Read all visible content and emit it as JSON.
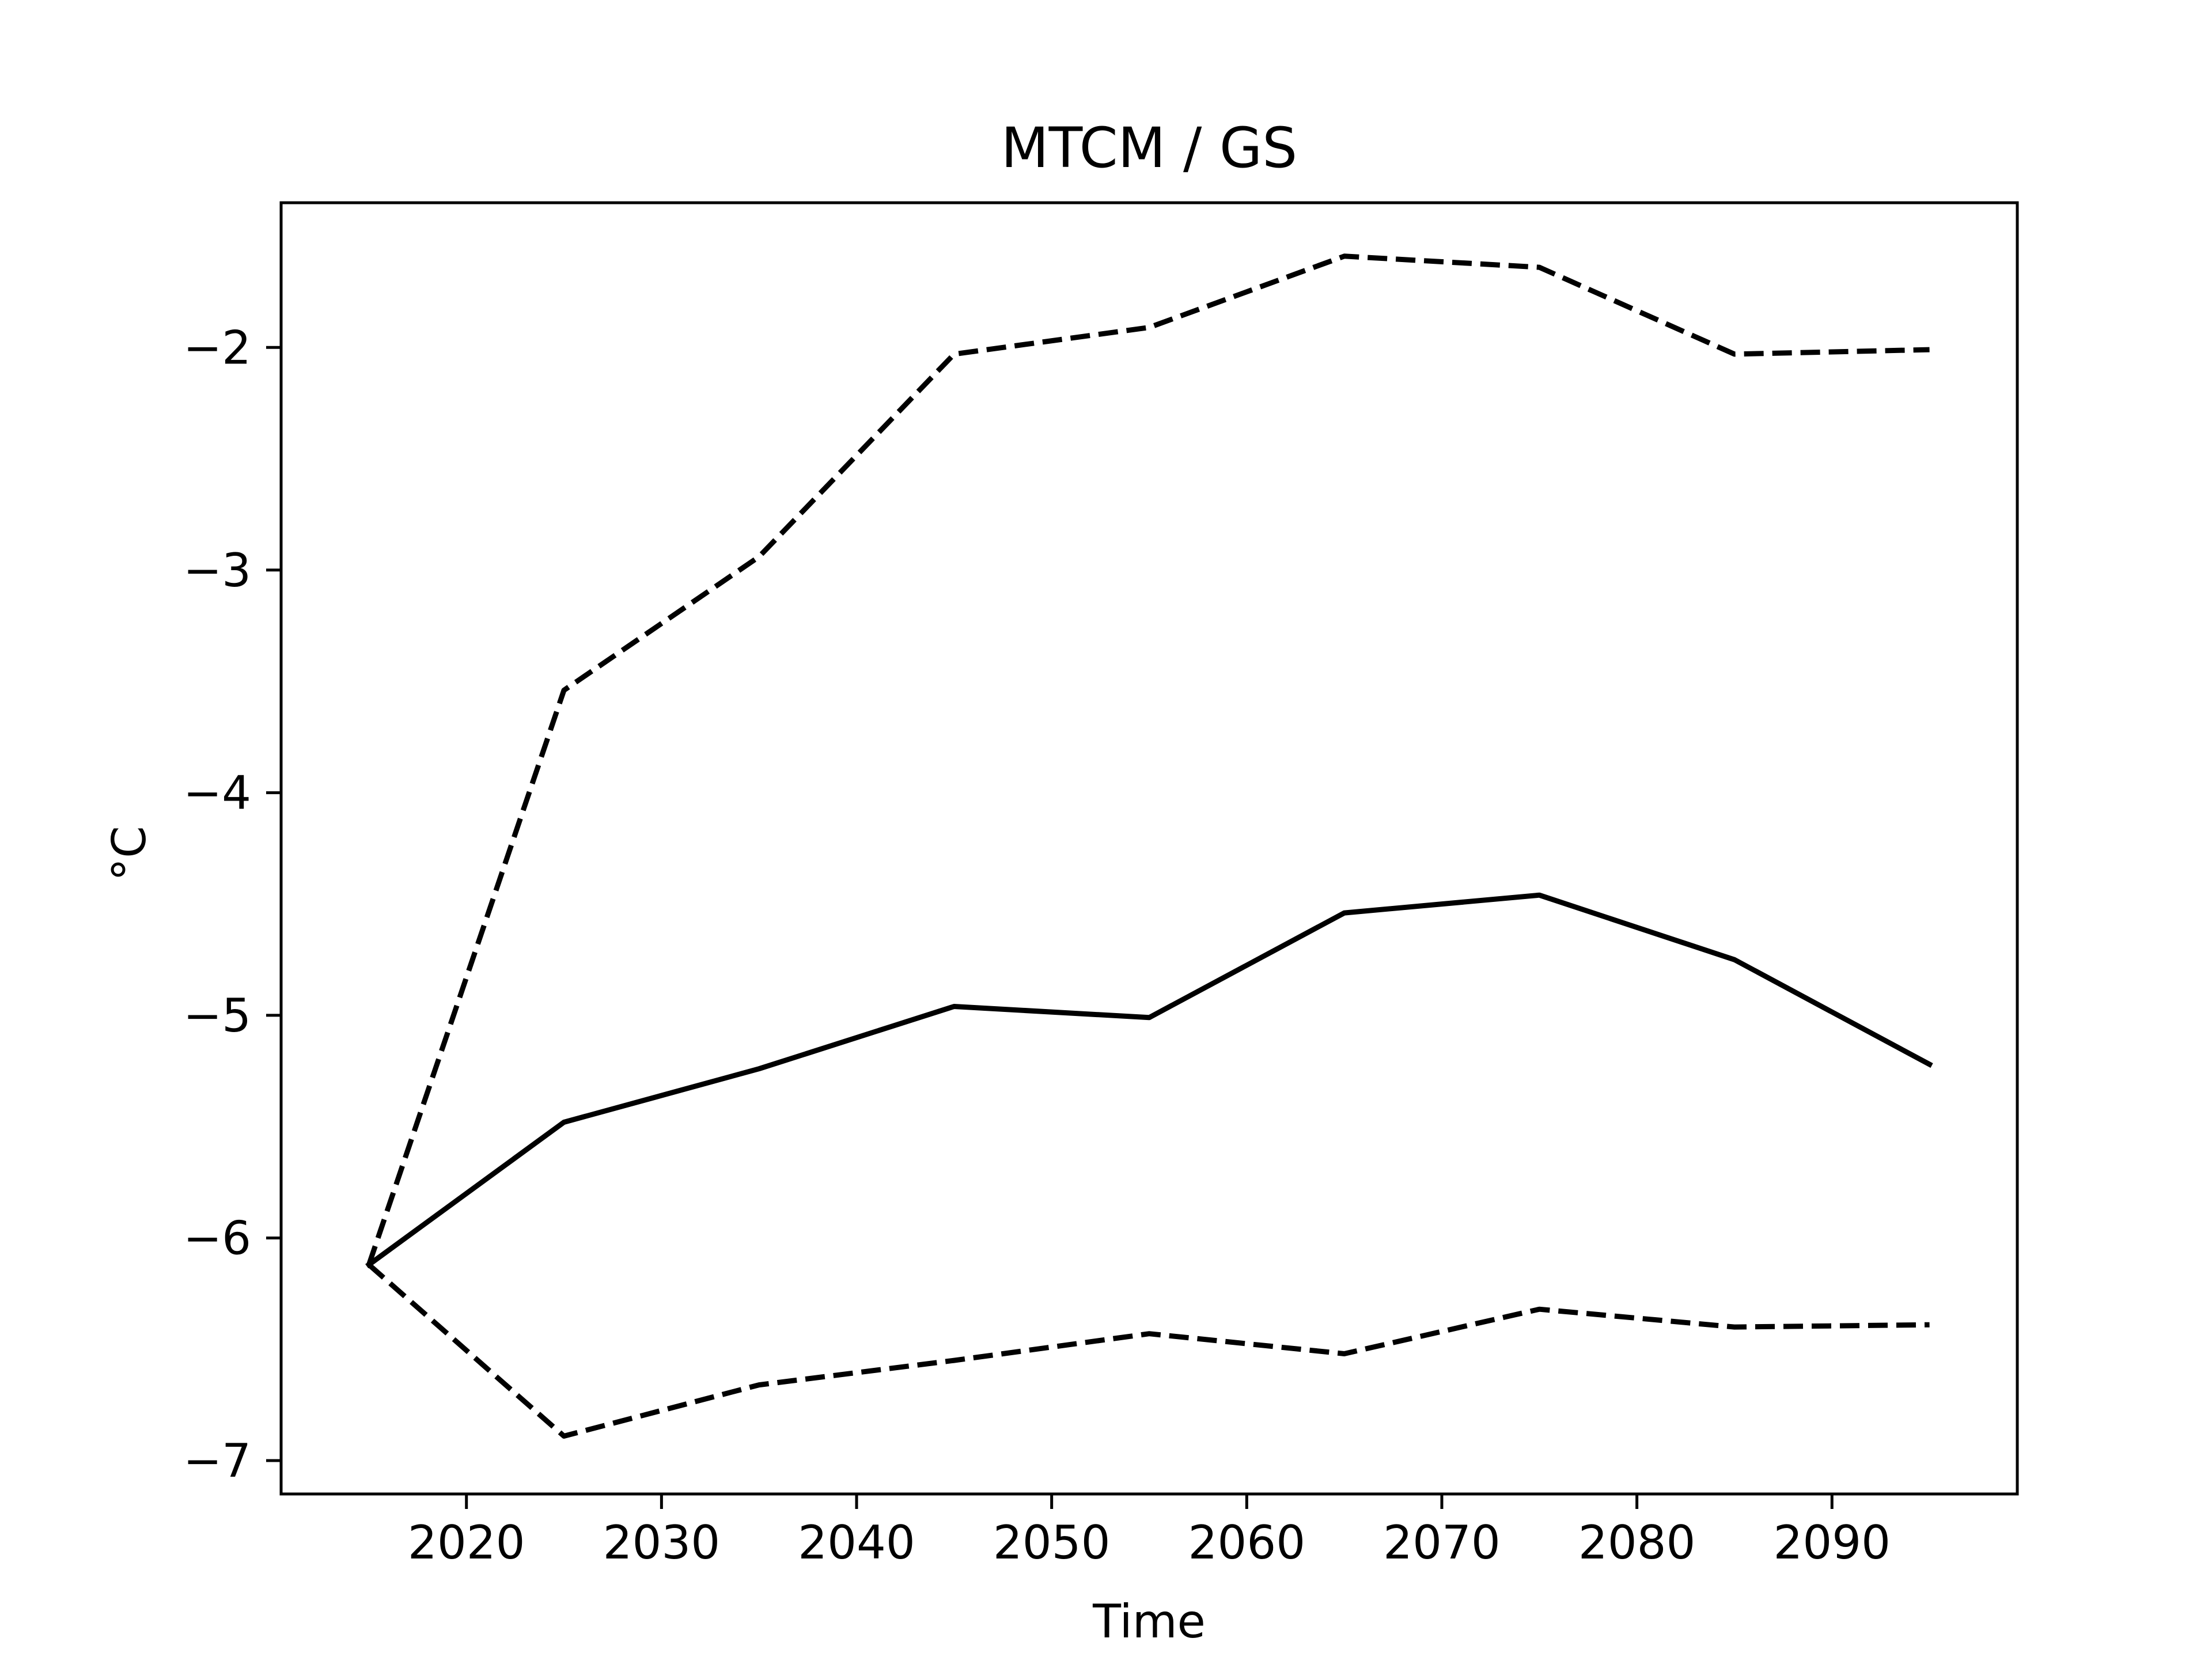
{
  "chart_data": {
    "type": "line",
    "title": "MTCM / GS",
    "xlabel": "Time",
    "ylabel": "°C",
    "xlim": [
      2010.5,
      2099.5
    ],
    "ylim": [
      -7.15,
      -1.35
    ],
    "x_ticks": [
      2020,
      2030,
      2040,
      2050,
      2060,
      2070,
      2080,
      2090
    ],
    "y_ticks": [
      -7,
      -6,
      -5,
      -4,
      -3,
      -2
    ],
    "y_tick_labels": [
      "−7",
      "−6",
      "−5",
      "−4",
      "−3",
      "−2"
    ],
    "grid": false,
    "x": [
      2015,
      2025,
      2035,
      2045,
      2055,
      2065,
      2075,
      2085,
      2095
    ],
    "series": [
      {
        "style": "solid",
        "color": "#000000",
        "values": [
          -6.12,
          -5.48,
          -5.24,
          -4.96,
          -5.01,
          -4.54,
          -4.46,
          -4.75,
          -5.22
        ]
      },
      {
        "style": "dashed",
        "color": "#000000",
        "values": [
          -6.12,
          -3.54,
          -2.94,
          -2.03,
          -1.91,
          -1.59,
          -1.64,
          -2.03,
          -2.01
        ]
      },
      {
        "style": "dashed",
        "color": "#000000",
        "values": [
          -6.12,
          -6.89,
          -6.66,
          -6.55,
          -6.43,
          -6.52,
          -6.32,
          -6.4,
          -6.39
        ]
      }
    ]
  }
}
